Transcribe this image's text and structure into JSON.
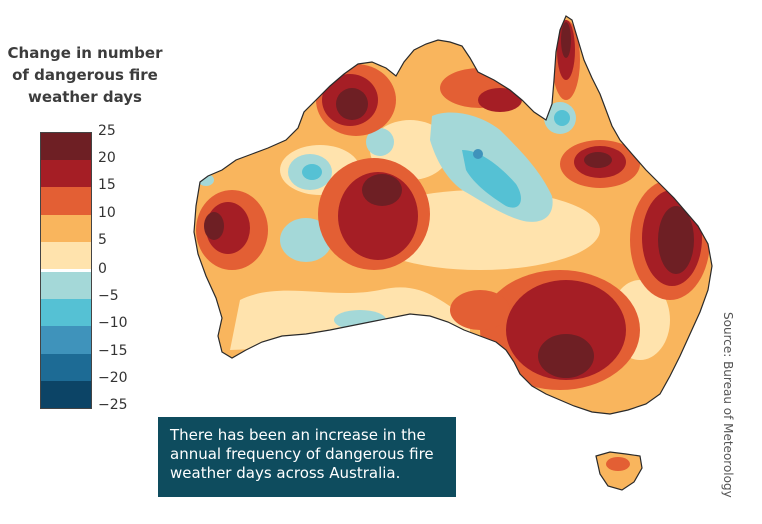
{
  "legend": {
    "title_lines": [
      "Change in number",
      "of dangerous fire",
      "weather days"
    ],
    "bins": [
      {
        "color": "#6e1f24"
      },
      {
        "color": "#a51e25"
      },
      {
        "color": "#e35f34"
      },
      {
        "color": "#f9b55d"
      },
      {
        "color": "#ffe3ad"
      },
      {
        "color": "#a4d8d8"
      },
      {
        "color": "#55c1d4"
      },
      {
        "color": "#3f93bb"
      },
      {
        "color": "#1d6b95"
      },
      {
        "color": "#0c4466"
      }
    ],
    "tick_labels": [
      "25",
      "20",
      "15",
      "10",
      "5",
      "0",
      "−5",
      "−10",
      "−15",
      "−20",
      "−25"
    ]
  },
  "map": {
    "region": "Australia",
    "base_color": "#f9b55d",
    "coast_color": "#2a2a2a"
  },
  "callout": {
    "text": "There has been an increase in the annual frequency of dangerous fire weather days across Australia."
  },
  "source": "Source: Bureau of Meteorology"
}
